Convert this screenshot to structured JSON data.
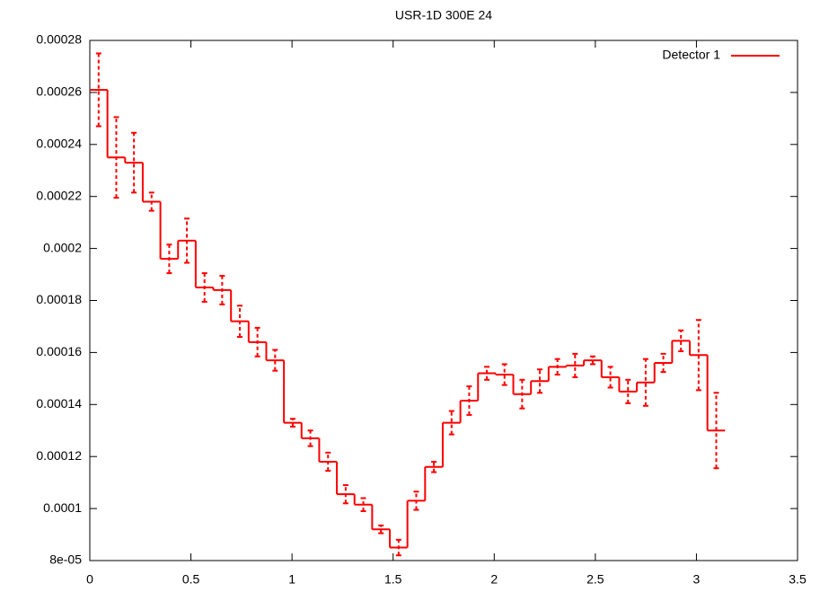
{
  "chart_data": {
    "type": "histep-errorbars",
    "title": "USR-1D 300E 24",
    "x": [
      0.0436,
      0.1309,
      0.2182,
      0.3054,
      0.3927,
      0.48,
      0.5672,
      0.6545,
      0.7418,
      0.829,
      0.9163,
      1.0036,
      1.0908,
      1.1781,
      1.2654,
      1.3526,
      1.4399,
      1.5272,
      1.6144,
      1.7017,
      1.789,
      1.8762,
      1.9635,
      2.0508,
      2.138,
      2.2253,
      2.3126,
      2.3998,
      2.4871,
      2.5744,
      2.6616,
      2.7489,
      2.8362,
      2.9234,
      3.0107,
      3.098
    ],
    "series": [
      {
        "name": "Detector 1",
        "color": "#ff0000",
        "values": [
          0.000261,
          0.000235,
          0.000233,
          0.000218,
          0.000196,
          0.000203,
          0.000185,
          0.000184,
          0.000172,
          0.000164,
          0.000157,
          0.000133,
          0.000127,
          0.000118,
          0.0001055,
          0.0001015,
          9.2e-05,
          8.5e-05,
          0.000103,
          0.000116,
          0.000133,
          0.0001415,
          0.000152,
          0.0001515,
          0.000144,
          0.000149,
          0.0001545,
          0.000155,
          0.000157,
          0.0001505,
          0.000145,
          0.0001485,
          0.000156,
          0.0001645,
          0.000159,
          0.00013
        ],
        "errors": [
          1.4e-05,
          1.55e-05,
          1.15e-05,
          3.5e-06,
          5.5e-06,
          8.5e-06,
          5.5e-06,
          5.5e-06,
          6e-06,
          5.5e-06,
          4e-06,
          1.5e-06,
          3e-06,
          3.5e-06,
          3.5e-06,
          2.5e-06,
          1.5e-06,
          3e-06,
          3.5e-06,
          2e-06,
          4.5e-06,
          5.5e-06,
          2.5e-06,
          4e-06,
          5.5e-06,
          4.5e-06,
          3e-06,
          4.5e-06,
          1.5e-06,
          4e-06,
          4.5e-06,
          9e-06,
          3.5e-06,
          4e-06,
          1.35e-05,
          1.45e-05
        ]
      }
    ],
    "xlim": [
      0,
      3.5
    ],
    "xticks": [
      0,
      0.5,
      1,
      1.5,
      2,
      2.5,
      3,
      3.5
    ],
    "ylim": [
      8e-05,
      0.00028
    ],
    "yticks": [
      {
        "value": 8e-05,
        "label": "8e-05"
      },
      0.0001,
      0.00012,
      0.00014,
      0.00016,
      0.00018,
      0.0002,
      0.00022,
      0.00024,
      0.00026,
      0.00028
    ],
    "grid": false,
    "legend": "top-right"
  }
}
